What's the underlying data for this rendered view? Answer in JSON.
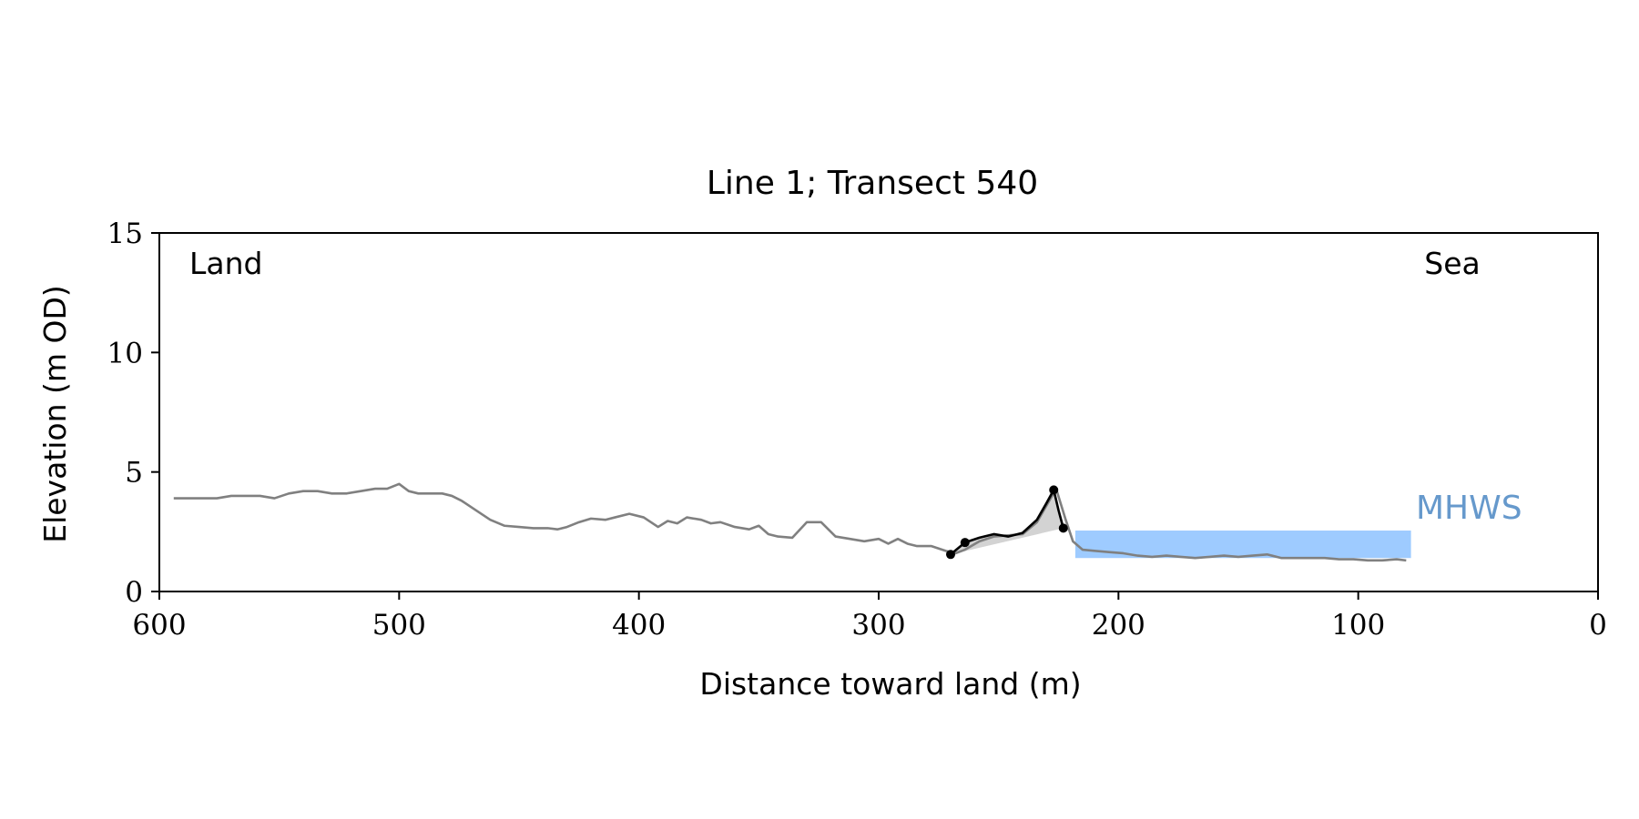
{
  "chart_data": {
    "type": "line",
    "title": "Line 1; Transect 540",
    "xlabel": "Distance toward land (m)",
    "ylabel": "Elevation (m OD)",
    "xlim": [
      600,
      0
    ],
    "ylim": [
      0,
      15
    ],
    "x_reversed": true,
    "xticks": [
      600,
      500,
      400,
      300,
      200,
      100,
      0
    ],
    "yticks": [
      0,
      5,
      10,
      15
    ],
    "grid": false,
    "annotations": {
      "land": "Land",
      "sea": "Sea",
      "mhws": "MHWS"
    },
    "colors": {
      "profile": "#808080",
      "dune": "#000000",
      "dune_fill": "#d3d3d3",
      "mhws_fill": "#9ecbff",
      "mhws_text": "#6699cc"
    },
    "series": [
      {
        "role": "profile",
        "x": [
          594,
          588,
          582,
          576,
          570,
          564,
          558,
          552,
          546,
          540,
          534,
          528,
          522,
          516,
          510,
          505,
          500,
          496,
          492,
          488,
          482,
          478,
          474,
          468,
          462,
          456,
          450,
          444,
          438,
          434,
          430,
          425,
          420,
          414,
          410,
          404,
          398,
          392,
          388,
          384,
          380,
          374,
          370,
          366,
          360,
          354,
          350,
          346,
          342,
          336,
          330,
          324,
          318,
          312,
          306,
          300,
          296,
          292,
          288,
          284,
          278,
          272,
          268,
          264,
          258,
          252,
          246,
          240,
          234,
          230,
          226,
          222,
          219,
          215,
          210,
          204,
          198,
          192,
          186,
          180,
          174,
          168,
          162,
          156,
          150,
          144,
          138,
          132,
          126,
          120,
          114,
          108,
          102,
          96,
          90,
          84,
          80
        ],
        "y": [
          3.9,
          3.9,
          3.9,
          3.9,
          4.0,
          4.0,
          4.0,
          3.9,
          4.1,
          4.2,
          4.2,
          4.1,
          4.1,
          4.2,
          4.3,
          4.3,
          4.5,
          4.2,
          4.1,
          4.1,
          4.1,
          4.0,
          3.8,
          3.4,
          3.0,
          2.75,
          2.7,
          2.65,
          2.65,
          2.6,
          2.7,
          2.9,
          3.05,
          3.0,
          3.1,
          3.25,
          3.1,
          2.7,
          2.95,
          2.85,
          3.1,
          3.0,
          2.85,
          2.9,
          2.7,
          2.6,
          2.75,
          2.4,
          2.3,
          2.25,
          2.9,
          2.9,
          2.3,
          2.2,
          2.1,
          2.2,
          2.0,
          2.2,
          2.0,
          1.9,
          1.9,
          1.7,
          1.6,
          1.75,
          2.1,
          2.3,
          2.35,
          2.4,
          2.9,
          3.6,
          4.3,
          3.0,
          2.1,
          1.75,
          1.7,
          1.65,
          1.6,
          1.5,
          1.45,
          1.5,
          1.45,
          1.4,
          1.45,
          1.5,
          1.45,
          1.5,
          1.55,
          1.4,
          1.4,
          1.4,
          1.4,
          1.35,
          1.35,
          1.3,
          1.3,
          1.35,
          1.3
        ]
      },
      {
        "role": "dune",
        "x": [
          270,
          264,
          258,
          252,
          246,
          240,
          234,
          230,
          227,
          225,
          223
        ],
        "y": [
          1.55,
          2.05,
          2.25,
          2.4,
          2.3,
          2.45,
          3.0,
          3.7,
          4.25,
          3.4,
          2.65
        ]
      }
    ],
    "markers": [
      {
        "x": 270,
        "y": 1.55
      },
      {
        "x": 264,
        "y": 2.05
      },
      {
        "x": 227,
        "y": 4.25
      },
      {
        "x": 223,
        "y": 2.65
      }
    ],
    "mhws_band": {
      "x": [
        218,
        78
      ],
      "y": [
        1.4,
        2.55
      ]
    }
  }
}
